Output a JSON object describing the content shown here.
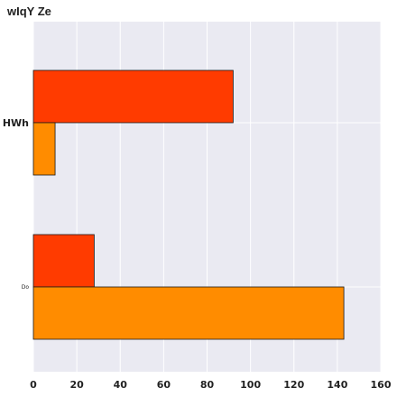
{
  "chart_data": {
    "type": "bar",
    "orientation": "horizontal",
    "title": "wIqY Ze",
    "categories": [
      "HWh",
      "Do"
    ],
    "series": [
      {
        "color": "#ff3b00",
        "values": [
          92,
          28
        ]
      },
      {
        "color": "#ff8c00",
        "values": [
          10,
          143
        ]
      }
    ],
    "xlim": [
      0,
      160
    ],
    "xticks": [
      0,
      20,
      40,
      60,
      80,
      100,
      120,
      140,
      160
    ],
    "xlabel": "",
    "ylabel": "",
    "grid": true,
    "legend": false,
    "colors": {
      "background": "#eaeaf2",
      "grid": "#ffffff",
      "edge": "#1a1a1a"
    }
  }
}
